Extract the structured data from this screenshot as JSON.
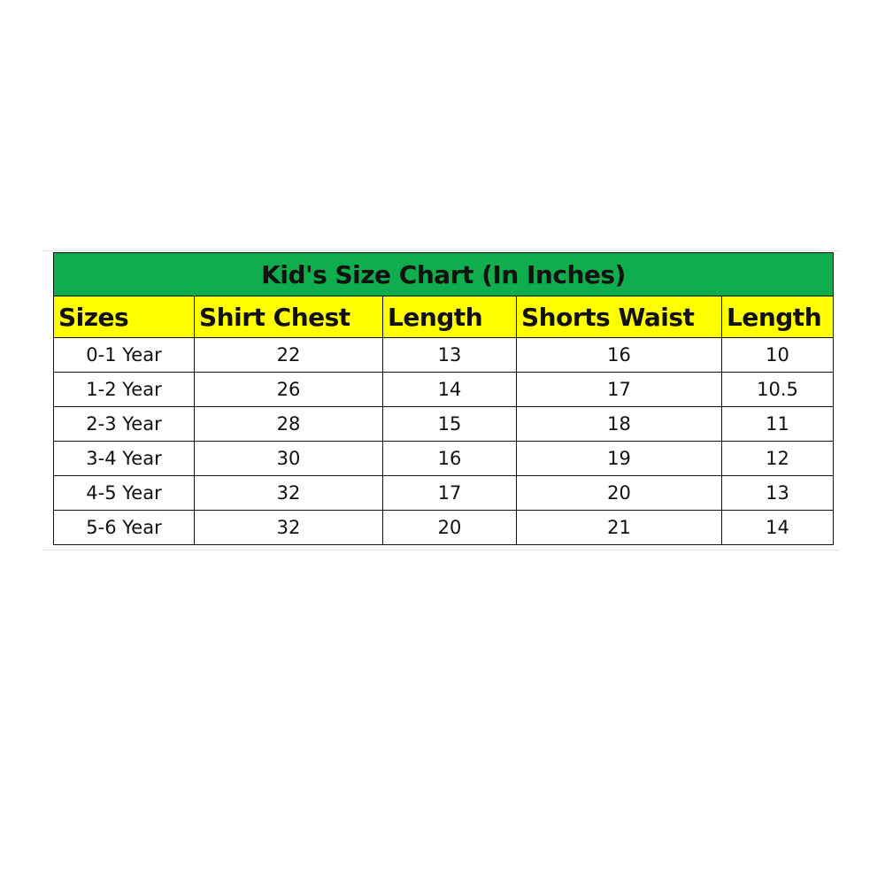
{
  "title": "Kid's Size Chart (In Inches)",
  "headers": [
    "Sizes",
    "Shirt Chest",
    "Length",
    "Shorts Waist",
    "Length"
  ],
  "rows": [
    [
      "0-1 Year",
      "22",
      "13",
      "16",
      "10"
    ],
    [
      "1-2 Year",
      "26",
      "14",
      "17",
      "10.5"
    ],
    [
      "2-3 Year",
      "28",
      "15",
      "18",
      "11"
    ],
    [
      "3-4 Year",
      "30",
      "16",
      "19",
      "12"
    ],
    [
      "4-5 Year",
      "32",
      "17",
      "20",
      "13"
    ],
    [
      "5-6 Year",
      "32",
      "20",
      "21",
      "14"
    ]
  ],
  "colors": {
    "title_bg": "#0fad4d",
    "header_bg": "#ffff00"
  }
}
